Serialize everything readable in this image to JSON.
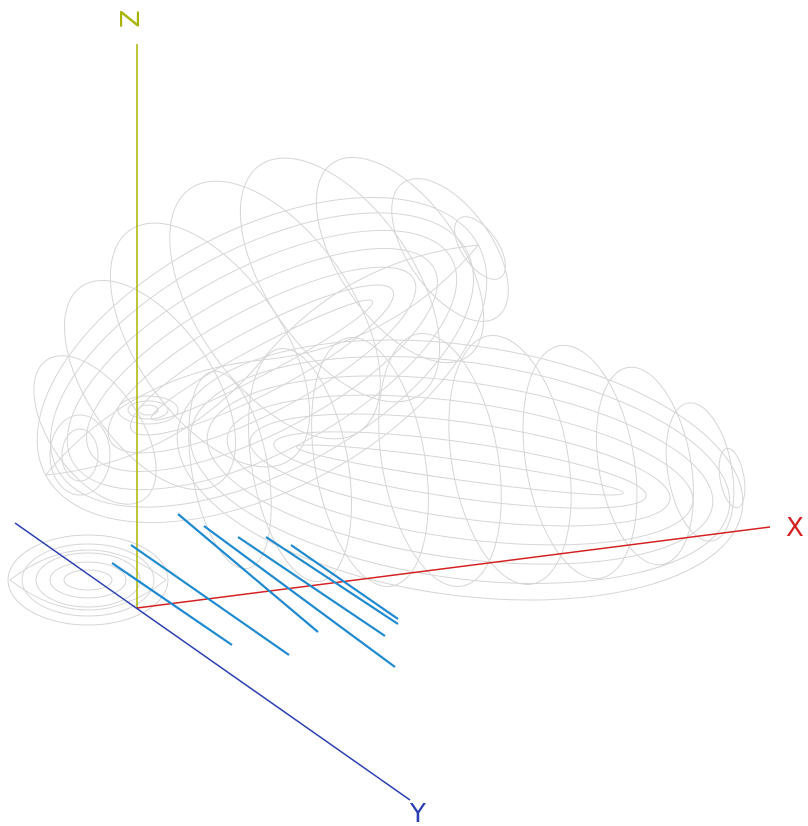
{
  "axes": {
    "x": {
      "label": "X",
      "color": "#d42020"
    },
    "y": {
      "label": "Y",
      "color": "#2b3fb0"
    },
    "z": {
      "label": "Z",
      "color": "#a8b400"
    }
  },
  "colors": {
    "mesh": "#d6d6d6",
    "elements": "#1f8ad0",
    "background": "#ffffff"
  },
  "antenna": {
    "icon": "yagi-array-icon",
    "element_count": 7
  }
}
